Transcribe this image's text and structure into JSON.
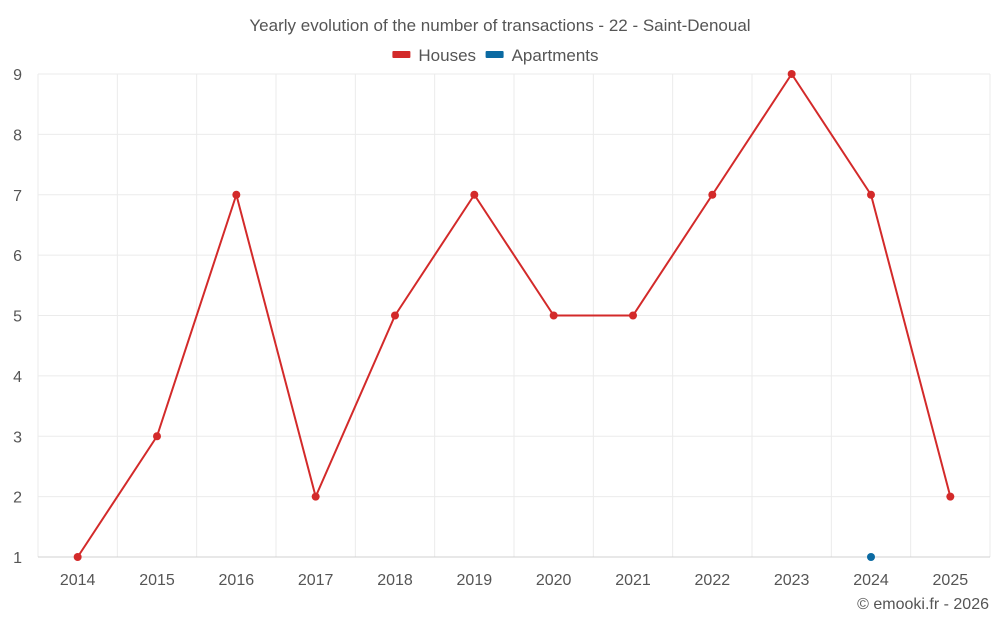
{
  "chart_data": {
    "type": "line",
    "title": "Yearly evolution of the number of transactions - 22 - Saint-Denoual",
    "xlabel": "",
    "ylabel": "",
    "categories": [
      "2014",
      "2015",
      "2016",
      "2017",
      "2018",
      "2019",
      "2020",
      "2021",
      "2022",
      "2023",
      "2024",
      "2025"
    ],
    "ylim": [
      1,
      9
    ],
    "yticks": [
      1,
      2,
      3,
      4,
      5,
      6,
      7,
      8,
      9
    ],
    "grid": true,
    "legend_position": "top-center",
    "series": [
      {
        "name": "Houses",
        "color": "#d32a2a",
        "values": [
          1,
          3,
          7,
          2,
          5,
          7,
          5,
          5,
          7,
          9,
          7,
          2
        ]
      },
      {
        "name": "Apartments",
        "color": "#0b6aa2",
        "values": [
          null,
          null,
          null,
          null,
          null,
          null,
          null,
          null,
          null,
          null,
          1,
          null
        ]
      }
    ]
  },
  "footer": {
    "copyright": "© emooki.fr - 2026"
  }
}
